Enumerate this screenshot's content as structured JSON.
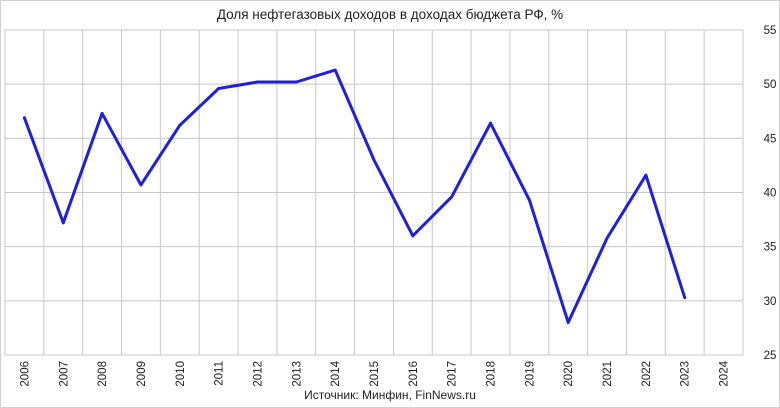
{
  "chart_data": {
    "type": "line",
    "title": "Доля нефтегазовых доходов в доходах бюджета РФ, %",
    "source": "Источник: Минфин, FinNews.ru",
    "categories": [
      "2006",
      "2007",
      "2008",
      "2009",
      "2010",
      "2011",
      "2012",
      "2013",
      "2014",
      "2015",
      "2016",
      "2017",
      "2018",
      "2019",
      "2020",
      "2021",
      "2022",
      "2023",
      "2024"
    ],
    "series": [
      {
        "values": [
          46.9,
          37.2,
          47.3,
          40.7,
          46.2,
          49.6,
          50.2,
          50.2,
          51.3,
          43.0,
          36.0,
          39.6,
          46.4,
          39.3,
          28.0,
          35.8,
          41.6,
          30.3,
          null
        ],
        "color": "#1f1fe0"
      }
    ],
    "ylim": [
      25,
      55
    ],
    "yticks": [
      25,
      30,
      35,
      40,
      45,
      50,
      55
    ],
    "y_axis_side": "right",
    "grid": true,
    "xlabel": "",
    "ylabel": ""
  }
}
